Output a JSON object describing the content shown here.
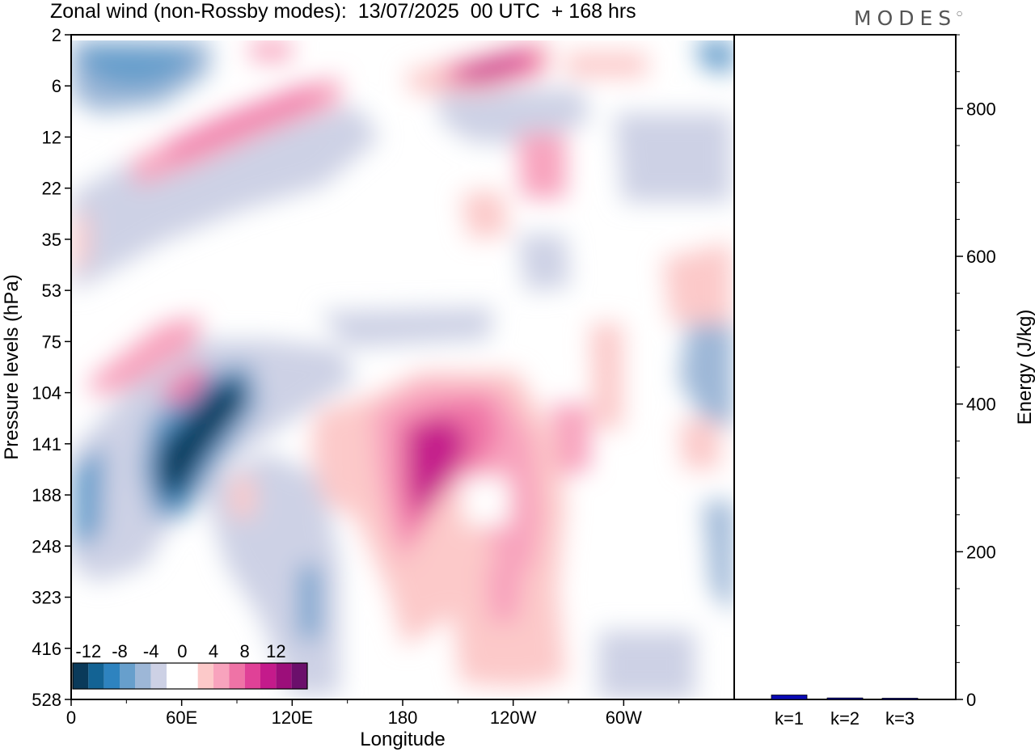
{
  "title": "Zonal wind (non-Rossby modes):  13/07/2025  00 UTC  + 168 hrs",
  "logo": "MODES",
  "chart_data": [
    {
      "type": "heatmap",
      "xlabel": "Longitude",
      "ylabel": "Pressure levels (hPa)",
      "xticks": [
        "0",
        "60E",
        "120E",
        "180",
        "120W",
        "60W"
      ],
      "xtick_lon": [
        0,
        60,
        120,
        180,
        240,
        300
      ],
      "xlim": [
        0,
        360
      ],
      "yticks": [
        "2",
        "6",
        "12",
        "22",
        "35",
        "53",
        "75",
        "104",
        "141",
        "188",
        "248",
        "323",
        "416",
        "528"
      ],
      "colorbar": {
        "labels": [
          "-12",
          "-8",
          "-4",
          "0",
          "4",
          "8",
          "12"
        ],
        "colors": [
          "#0a3a5a",
          "#136394",
          "#2e83bf",
          "#679fcc",
          "#9db7d7",
          "#cdd1e5",
          "#ffffff",
          "#ffffff",
          "#fcc9c9",
          "#f8a3bd",
          "#ef73a6",
          "#e04197",
          "#c41a8b",
          "#9c0e7a",
          "#6b0f6b"
        ]
      },
      "features": [
        {
          "lon": 37,
          "p_idx": 8.7,
          "value": -14
        },
        {
          "lon": 58,
          "p_idx": 7.9,
          "value": -14
        },
        {
          "lon": 190,
          "p_idx": 8.8,
          "value": 11
        },
        {
          "lon": 220,
          "p_idx": 0.6,
          "value": 10
        },
        {
          "lon": 65,
          "p_idx": 1.6,
          "value": 7
        },
        {
          "lon": 30,
          "p_idx": 0.5,
          "value": -8
        },
        {
          "lon": 350,
          "p_idx": 0.3,
          "value": -8
        }
      ]
    },
    {
      "type": "bar",
      "categories": [
        "k=1",
        "k=2",
        "k=3"
      ],
      "values": [
        6,
        2,
        1
      ],
      "ylabel": "Energy (J/kg)",
      "ylim": [
        0,
        900
      ],
      "yticks": [
        0,
        200,
        400,
        600,
        800
      ],
      "bar_color": "#0a0ab4"
    }
  ]
}
